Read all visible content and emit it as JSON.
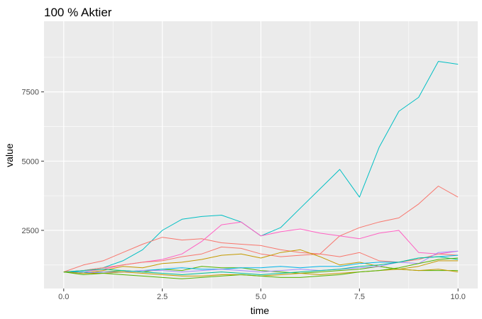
{
  "chart_data": {
    "type": "line",
    "title": "100 % Aktier",
    "xlabel": "time",
    "ylabel": "value",
    "xlim": [
      -0.5,
      10.5
    ],
    "ylim": [
      400,
      10050
    ],
    "x_ticks": [
      0,
      2.5,
      5,
      7.5,
      10
    ],
    "x_tick_labels": [
      "0.0",
      "2.5",
      "5.0",
      "7.5",
      "10.0"
    ],
    "y_ticks": [
      2500,
      5000,
      7500
    ],
    "y_tick_labels": [
      "2500",
      "5000",
      "7500"
    ],
    "grid": true,
    "legend": "none",
    "panel_background": "#ebebeb",
    "x": [
      0,
      0.5,
      1,
      1.5,
      2,
      2.5,
      3,
      3.5,
      4,
      4.5,
      5,
      5.5,
      6,
      6.5,
      7,
      7.5,
      8,
      8.5,
      9,
      9.5,
      10
    ],
    "series": [
      {
        "color": "#00BFC4",
        "values": [
          1000,
          1050,
          1150,
          1400,
          1800,
          2500,
          2900,
          3000,
          3050,
          2800,
          2300,
          2600,
          3300,
          4000,
          4700,
          3700,
          5500,
          6800,
          7300,
          8600,
          8500
        ]
      },
      {
        "color": "#F8766D",
        "values": [
          1000,
          1250,
          1400,
          1700,
          2000,
          2250,
          2150,
          2200,
          2050,
          2000,
          1950,
          1800,
          1700,
          1650,
          2300,
          2600,
          2800,
          2950,
          3450,
          4100,
          3700
        ]
      },
      {
        "color": "#FF61C3",
        "values": [
          1000,
          1000,
          1100,
          1250,
          1350,
          1450,
          1650,
          2100,
          2700,
          2800,
          2300,
          2450,
          2550,
          2400,
          2300,
          2200,
          2400,
          2500,
          1700,
          1650,
          1750
        ]
      },
      {
        "color": "#F8766D",
        "values": [
          1000,
          1050,
          1150,
          1250,
          1350,
          1400,
          1550,
          1650,
          1900,
          1850,
          1650,
          1550,
          1600,
          1650,
          1550,
          1700,
          1400,
          1350,
          1450,
          1650,
          1600
        ]
      },
      {
        "color": "#C49A00",
        "values": [
          1000,
          950,
          1050,
          1200,
          1150,
          1300,
          1350,
          1450,
          1600,
          1650,
          1500,
          1700,
          1800,
          1550,
          1250,
          1350,
          1200,
          1100,
          1200,
          1400,
          1400
        ]
      },
      {
        "color": "#53B400",
        "values": [
          1000,
          950,
          1000,
          1050,
          1000,
          1100,
          1050,
          1200,
          1150,
          1150,
          1050,
          1000,
          950,
          1000,
          1050,
          1100,
          1200,
          1100,
          1050,
          1050,
          1050
        ]
      },
      {
        "color": "#00B6EB",
        "values": [
          1000,
          1000,
          950,
          1000,
          1050,
          1100,
          1150,
          1100,
          1100,
          1150,
          1150,
          1200,
          1150,
          1200,
          1200,
          1300,
          1350,
          1350,
          1500,
          1550,
          1600
        ]
      },
      {
        "color": "#A58AFF",
        "values": [
          1000,
          950,
          1000,
          1000,
          1050,
          1050,
          1000,
          1050,
          1100,
          1050,
          1000,
          1050,
          1100,
          1050,
          1100,
          1150,
          1200,
          1350,
          1300,
          1700,
          1750
        ]
      },
      {
        "color": "#00C094",
        "values": [
          1000,
          1050,
          1100,
          1050,
          1000,
          950,
          900,
          950,
          1000,
          950,
          900,
          950,
          1000,
          1050,
          1100,
          1200,
          1250,
          1350,
          1500,
          1550,
          1450
        ]
      },
      {
        "color": "#C49A00",
        "values": [
          1000,
          950,
          950,
          1000,
          950,
          900,
          850,
          850,
          900,
          900,
          850,
          900,
          950,
          900,
          950,
          1000,
          1050,
          1100,
          1050,
          1100,
          1000
        ]
      },
      {
        "color": "#53B400",
        "values": [
          1000,
          900,
          950,
          900,
          850,
          800,
          750,
          800,
          850,
          900,
          850,
          800,
          800,
          850,
          900,
          1000,
          1050,
          1150,
          1300,
          1450,
          1500
        ]
      }
    ]
  }
}
